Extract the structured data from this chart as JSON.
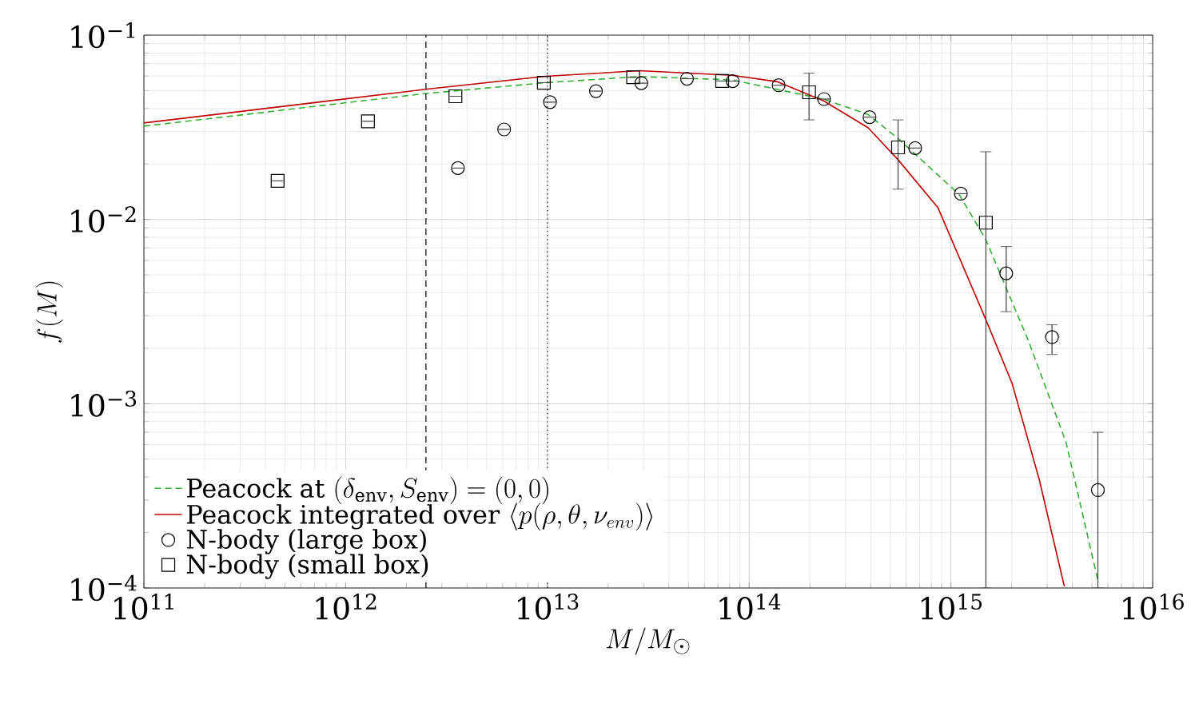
{
  "chart_data": {
    "type": "line",
    "xlabel": "M/M_\\odot",
    "ylabel": "f(M)",
    "log": "xy",
    "grid": true,
    "legend": "bottom left",
    "xlim": [
      100000000000.0,
      1e+16
    ],
    "ylim": [
      0.0001,
      0.1
    ],
    "xticks": [
      {
        "value": 100000000000.0,
        "label": "10$^{11}$"
      },
      {
        "value": 1000000000000.0,
        "label": "10$^{12}$"
      },
      {
        "value": 10000000000000.0,
        "label": "10$^{13}$"
      },
      {
        "value": 100000000000000.0,
        "label": "10$^{14}$"
      },
      {
        "value": 1000000000000000.0,
        "label": "10$^{15}$"
      },
      {
        "value": 1e+16,
        "label": "10$^{16}$"
      }
    ],
    "yticks": [
      {
        "value": 0.0001,
        "label": "10$^{−4}$"
      },
      {
        "value": 0.001,
        "label": "10$^{−3}$"
      },
      {
        "value": 0.01,
        "label": "10$^{−2}$"
      },
      {
        "value": 0.1,
        "label": "10$^{−1}$"
      }
    ],
    "ref_lines": [
      {
        "axis": "x",
        "value": 2500000000000.0,
        "color": "#000000",
        "line_style": "dashed"
      },
      {
        "axis": "x",
        "value": 10000000000000.0,
        "color": "#000000",
        "line_style": "dotted"
      }
    ],
    "series": [
      {
        "name": "\\mbox{Peacock at }(\\delta_{\\rm env},S_{\\rm env})=(0,0)",
        "color": "#33b033",
        "line_style": "dashed",
        "marker": "none",
        "x": [
          100000000000.0,
          299000000000.0,
          744000000000.0,
          2440000000000.0,
          9750000000000.0,
          28600000000000.0,
          82400000000000.0,
          233000000000000.0,
          389000000000000.0,
          547000000000000.0,
          1100000000000000.0,
          1490000000000000.0,
          2420000000000000.0,
          3720000000000000.0,
          5350000000000000.0
        ],
        "values": [
          0.0321,
          0.0368,
          0.0414,
          0.0481,
          0.0552,
          0.0596,
          0.0572,
          0.045,
          0.0371,
          0.0275,
          0.01365,
          0.00776,
          0.0022,
          0.000618,
          0.00011
        ]
      },
      {
        "name": "\\mbox{Peacock integrated over }\\langle p(\\rho,\\theta,\\nu_{env})\\rangle",
        "color": "#c00000",
        "line_style": "solid",
        "marker": "none",
        "x": [
          100000000000.0,
          299000000000.0,
          744000000000.0,
          2440000000000.0,
          9750000000000.0,
          28600000000000.0,
          82400000000000.0,
          137000000000000.0,
          233000000000000.0,
          389000000000000.0,
          547000000000000.0,
          863000000000000.0,
          1490000000000000.0,
          2010000000000000.0,
          2740000000000000.0,
          3650000000000000.0
        ],
        "values": [
          0.0334,
          0.0385,
          0.0434,
          0.0507,
          0.0598,
          0.0641,
          0.0606,
          0.056,
          0.0441,
          0.0314,
          0.0211,
          0.01157,
          0.00286,
          0.00129,
          0.000388,
          0.000102
        ]
      },
      {
        "name": "\\mbox{N-body (large box)}",
        "type": "scatter",
        "color": "#000000",
        "marker": "circle",
        "x": [
          3600000000000.0,
          6100000000000.0,
          10300000000000.0,
          17400000000000.0,
          29200000000000.0,
          49200000000000.0,
          82800000000000.0,
          140000000000000.0,
          235000000000000.0,
          395000000000000.0,
          665000000000000.0,
          1120000000000000.0,
          1880000000000000.0,
          3170000000000000.0,
          5350000000000000.0
        ],
        "values": [
          0.019,
          0.0308,
          0.0433,
          0.0497,
          0.0549,
          0.058,
          0.0563,
          0.0535,
          0.045,
          0.0359,
          0.0244,
          0.0138,
          0.0051,
          0.0023,
          0.00034
        ],
        "errors": [
          null,
          null,
          null,
          null,
          null,
          null,
          null,
          null,
          null,
          null,
          null,
          null,
          [
            0.00316,
            0.00713
          ],
          [
            0.00185,
            0.00268
          ],
          [
            0.0001,
            0.0007
          ]
        ]
      },
      {
        "name": "\\mbox{N-body (small box)}",
        "type": "scatter",
        "color": "#000000",
        "marker": "square",
        "x": [
          460000000000.0,
          1290000000000.0,
          3500000000000.0,
          9600000000000.0,
          26600000000000.0,
          73500000000000.0,
          198000000000000.0,
          547000000000000.0,
          1490000000000000.0
        ],
        "values": [
          0.0162,
          0.0341,
          0.0466,
          0.0552,
          0.0591,
          0.0564,
          0.049,
          0.0246,
          0.0096
        ],
        "errors": [
          null,
          null,
          null,
          null,
          null,
          null,
          [
            0.0347,
            0.0622
          ],
          [
            0.0146,
            0.0347
          ],
          [
            0.0001,
            0.0233
          ]
        ]
      }
    ]
  }
}
